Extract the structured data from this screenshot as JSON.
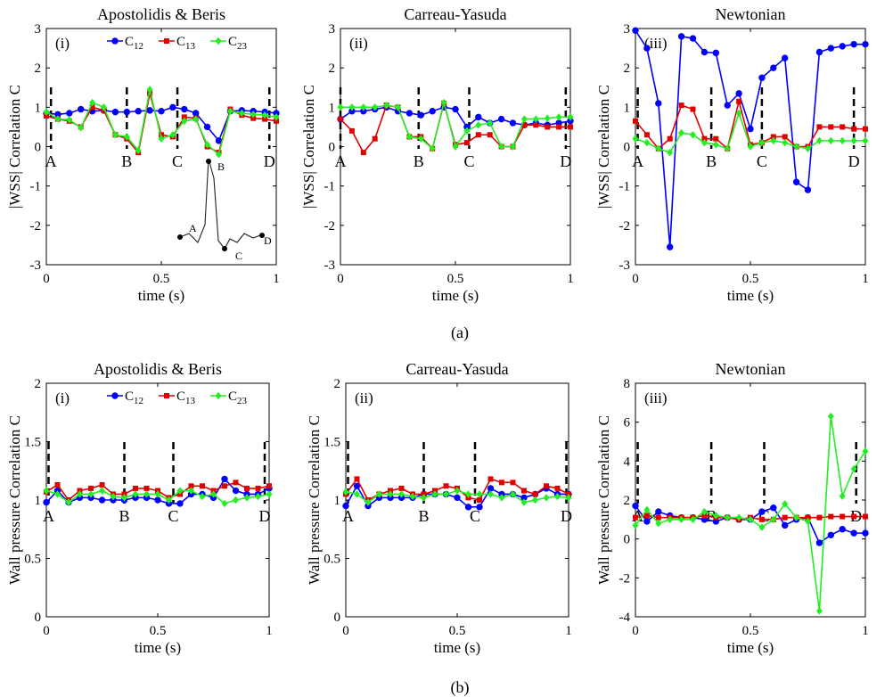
{
  "figure": {
    "row_a_caption": "(a)",
    "row_b_caption": "(b)"
  },
  "legend_entries": [
    {
      "name": "C",
      "sub": "12",
      "color": "#0000ff",
      "marker": "circle"
    },
    {
      "name": "C",
      "sub": "13",
      "color": "#e00000",
      "marker": "square"
    },
    {
      "name": "C",
      "sub": "23",
      "color": "#22ee22",
      "marker": "diamond"
    }
  ],
  "inset": {
    "labels": [
      "A",
      "B",
      "C",
      "D"
    ],
    "description_points": [
      [
        0,
        -2.3
      ],
      [
        0.12,
        -2.35
      ],
      [
        0.18,
        -0.4
      ],
      [
        0.29,
        -2.62
      ],
      [
        0.42,
        -2.28
      ]
    ]
  },
  "chart_data": [
    {
      "type": "line",
      "panel_label": "(i)",
      "title": "Apostolidis & Beris",
      "xlabel": "time (s)",
      "ylabel": "|WSS| Correlation C",
      "xlim": [
        0,
        1
      ],
      "ylim": [
        -3,
        3
      ],
      "xticks": [
        0,
        0.5,
        1
      ],
      "xtick_labels": [
        "0",
        "0.5",
        "1"
      ],
      "yticks": [
        -3,
        -2,
        -1,
        0,
        1,
        2,
        3
      ],
      "ytick_labels": [
        "-3",
        "-2",
        "-1",
        "0",
        "1",
        "2",
        "3"
      ],
      "legend": true,
      "markers": [
        {
          "label": "A",
          "x": 0.02
        },
        {
          "label": "B",
          "x": 0.35
        },
        {
          "label": "C",
          "x": 0.57
        },
        {
          "label": "D",
          "x": 0.97
        }
      ],
      "x": [
        0,
        0.05,
        0.1,
        0.15,
        0.2,
        0.25,
        0.3,
        0.35,
        0.4,
        0.45,
        0.5,
        0.55,
        0.6,
        0.65,
        0.7,
        0.75,
        0.8,
        0.85,
        0.9,
        0.95,
        1.0
      ],
      "series": [
        {
          "name": "C12",
          "values": [
            0.85,
            0.82,
            0.85,
            0.95,
            0.9,
            0.92,
            0.88,
            0.88,
            0.9,
            0.92,
            0.9,
            1.0,
            0.95,
            0.85,
            0.5,
            0.15,
            0.9,
            0.92,
            0.9,
            0.88,
            0.85
          ]
        },
        {
          "name": "C13",
          "values": [
            0.78,
            0.7,
            0.65,
            0.5,
            1.0,
            0.92,
            0.3,
            0.2,
            -0.15,
            1.35,
            0.3,
            0.25,
            0.75,
            0.72,
            0.0,
            -0.15,
            0.95,
            0.8,
            0.72,
            0.7,
            0.65
          ]
        },
        {
          "name": "C23",
          "values": [
            0.88,
            0.7,
            0.68,
            0.48,
            1.12,
            1.0,
            0.3,
            0.25,
            -0.1,
            1.45,
            0.2,
            0.3,
            0.65,
            0.7,
            0.05,
            -0.2,
            0.9,
            0.85,
            0.82,
            0.8,
            0.75
          ]
        }
      ],
      "has_inset": true
    },
    {
      "type": "line",
      "panel_label": "(ii)",
      "title": "Carreau-Yasuda",
      "xlabel": "time (s)",
      "ylabel": "|WSS| Correlation C",
      "xlim": [
        0,
        1
      ],
      "ylim": [
        -3,
        3
      ],
      "xticks": [
        0,
        0.5,
        1
      ],
      "xtick_labels": [
        "0",
        "0.5",
        "1"
      ],
      "yticks": [
        -3,
        -2,
        -1,
        0,
        1,
        2,
        3
      ],
      "ytick_labels": [
        "-3",
        "-2",
        "-1",
        "0",
        "1",
        "2",
        "3"
      ],
      "legend": false,
      "markers": [
        {
          "label": "A",
          "x": 0.0
        },
        {
          "label": "B",
          "x": 0.34
        },
        {
          "label": "C",
          "x": 0.56
        },
        {
          "label": "D",
          "x": 0.98
        }
      ],
      "x": [
        0,
        0.05,
        0.1,
        0.15,
        0.2,
        0.25,
        0.3,
        0.35,
        0.4,
        0.45,
        0.5,
        0.55,
        0.6,
        0.65,
        0.7,
        0.75,
        0.8,
        0.85,
        0.9,
        0.95,
        1.0
      ],
      "series": [
        {
          "name": "C12",
          "values": [
            0.7,
            0.9,
            0.9,
            0.95,
            1.0,
            0.9,
            0.85,
            0.8,
            0.9,
            1.0,
            0.95,
            0.5,
            0.75,
            0.6,
            0.7,
            0.6,
            0.55,
            0.6,
            0.55,
            0.6,
            0.65
          ]
        },
        {
          "name": "C13",
          "values": [
            0.7,
            0.4,
            -0.15,
            0.2,
            1.05,
            1.0,
            0.25,
            0.25,
            -0.05,
            1.1,
            0.05,
            0.1,
            0.3,
            0.3,
            0.0,
            0.0,
            0.55,
            0.55,
            0.5,
            0.5,
            0.5
          ]
        },
        {
          "name": "C23",
          "values": [
            1.0,
            1.0,
            1.0,
            1.0,
            1.05,
            1.0,
            0.25,
            0.2,
            -0.05,
            1.12,
            0.0,
            0.4,
            0.55,
            0.6,
            0.0,
            0.0,
            0.7,
            0.7,
            0.72,
            0.75,
            0.75
          ]
        }
      ],
      "has_inset": false
    },
    {
      "type": "line",
      "panel_label": "(iii)",
      "title": "Newtonian",
      "xlabel": "time (s)",
      "ylabel": "|WSS| Correlation C",
      "xlim": [
        0,
        1
      ],
      "ylim": [
        -3,
        3
      ],
      "xticks": [
        0,
        0.5,
        1
      ],
      "xtick_labels": [
        "0",
        "0.5",
        "1"
      ],
      "yticks": [
        -3,
        -2,
        -1,
        0,
        1,
        2,
        3
      ],
      "ytick_labels": [
        "-3",
        "-2",
        "-1",
        "0",
        "1",
        "2",
        "3"
      ],
      "legend": false,
      "markers": [
        {
          "label": "A",
          "x": 0.01
        },
        {
          "label": "B",
          "x": 0.33
        },
        {
          "label": "C",
          "x": 0.55
        },
        {
          "label": "D",
          "x": 0.95
        }
      ],
      "x": [
        0,
        0.05,
        0.1,
        0.15,
        0.2,
        0.25,
        0.3,
        0.35,
        0.4,
        0.45,
        0.5,
        0.55,
        0.6,
        0.65,
        0.7,
        0.75,
        0.8,
        0.85,
        0.9,
        0.95,
        1.0
      ],
      "series": [
        {
          "name": "C12",
          "values": [
            2.95,
            2.5,
            1.1,
            -2.55,
            2.8,
            2.75,
            2.4,
            2.38,
            1.05,
            1.35,
            0.45,
            1.75,
            2.0,
            2.25,
            -0.9,
            -1.1,
            2.4,
            2.5,
            2.55,
            2.6,
            2.6
          ]
        },
        {
          "name": "C13",
          "values": [
            0.65,
            0.3,
            -0.05,
            0.2,
            1.05,
            0.95,
            0.2,
            0.2,
            -0.05,
            1.15,
            0.05,
            0.1,
            0.25,
            0.25,
            0.0,
            0.0,
            0.5,
            0.5,
            0.5,
            0.45,
            0.45
          ]
        },
        {
          "name": "C23",
          "values": [
            0.2,
            0.1,
            -0.05,
            -0.15,
            0.35,
            0.3,
            0.1,
            0.05,
            -0.05,
            0.85,
            0.0,
            0.1,
            0.15,
            0.1,
            0.0,
            -0.05,
            0.15,
            0.15,
            0.15,
            0.15,
            0.15
          ]
        }
      ],
      "has_inset": false
    },
    {
      "type": "line",
      "panel_label": "(i)",
      "title": "Apostolidis & Beris",
      "xlabel": "time (s)",
      "ylabel": "Wall pressure Correlation C",
      "xlim": [
        0,
        1
      ],
      "ylim": [
        0,
        2
      ],
      "xticks": [
        0,
        0.5,
        1
      ],
      "xtick_labels": [
        "0",
        "0.5",
        "1"
      ],
      "yticks": [
        0,
        0.5,
        1,
        1.5,
        2
      ],
      "ytick_labels": [
        "0",
        "0.5",
        "1",
        "1.5",
        "2"
      ],
      "legend": true,
      "markers": [
        {
          "label": "A",
          "x": 0.01
        },
        {
          "label": "B",
          "x": 0.35
        },
        {
          "label": "C",
          "x": 0.57
        },
        {
          "label": "D",
          "x": 0.98
        }
      ],
      "x": [
        0,
        0.05,
        0.1,
        0.15,
        0.2,
        0.25,
        0.3,
        0.35,
        0.4,
        0.45,
        0.5,
        0.55,
        0.6,
        0.65,
        0.7,
        0.75,
        0.8,
        0.85,
        0.9,
        0.95,
        1.0
      ],
      "series": [
        {
          "name": "C12",
          "values": [
            0.98,
            1.08,
            0.98,
            1.02,
            1.02,
            1.0,
            1.0,
            1.0,
            1.02,
            1.02,
            1.0,
            0.97,
            0.97,
            1.05,
            1.05,
            1.02,
            1.18,
            1.08,
            1.05,
            1.05,
            1.1
          ]
        },
        {
          "name": "C13",
          "values": [
            1.07,
            1.13,
            1.0,
            1.08,
            1.1,
            1.13,
            1.05,
            1.05,
            1.1,
            1.1,
            1.08,
            1.02,
            1.05,
            1.12,
            1.12,
            1.08,
            1.12,
            1.15,
            1.1,
            1.1,
            1.12
          ]
        },
        {
          "name": "C23",
          "values": [
            1.08,
            1.05,
            0.98,
            1.05,
            1.05,
            1.08,
            1.03,
            1.02,
            1.05,
            1.05,
            1.05,
            1.0,
            1.08,
            1.08,
            1.03,
            1.05,
            0.97,
            1.0,
            1.02,
            1.03,
            1.05
          ]
        }
      ],
      "has_inset": false
    },
    {
      "type": "line",
      "panel_label": "(ii)",
      "title": "Carreau-Yasuda",
      "xlabel": "time (s)",
      "ylabel": "Wall pressure Correlation C",
      "xlim": [
        0,
        1
      ],
      "ylim": [
        0,
        2
      ],
      "xticks": [
        0,
        0.5,
        1
      ],
      "xtick_labels": [
        "0",
        "0.5",
        "1"
      ],
      "yticks": [
        0,
        0.5,
        1,
        1.5,
        2
      ],
      "ytick_labels": [
        "0",
        "0.5",
        "1",
        "1.5",
        "2"
      ],
      "legend": false,
      "markers": [
        {
          "label": "A",
          "x": 0.01
        },
        {
          "label": "B",
          "x": 0.35
        },
        {
          "label": "C",
          "x": 0.58
        },
        {
          "label": "D",
          "x": 0.99
        }
      ],
      "x": [
        0,
        0.05,
        0.1,
        0.15,
        0.2,
        0.25,
        0.3,
        0.35,
        0.4,
        0.45,
        0.5,
        0.55,
        0.6,
        0.65,
        0.7,
        0.75,
        0.8,
        0.85,
        0.9,
        0.95,
        1.0
      ],
      "series": [
        {
          "name": "C12",
          "values": [
            0.95,
            1.12,
            0.95,
            1.02,
            1.02,
            1.02,
            1.02,
            1.05,
            1.05,
            1.05,
            1.02,
            0.94,
            0.94,
            1.1,
            1.05,
            1.05,
            1.02,
            1.05,
            1.1,
            1.05,
            1.05
          ]
        },
        {
          "name": "C13",
          "values": [
            1.05,
            1.18,
            1.0,
            1.05,
            1.08,
            1.1,
            1.05,
            1.05,
            1.08,
            1.12,
            1.1,
            1.02,
            1.0,
            1.18,
            1.15,
            1.15,
            1.08,
            1.05,
            1.12,
            1.1,
            1.05
          ]
        },
        {
          "name": "C23",
          "values": [
            1.07,
            1.05,
            0.98,
            1.05,
            1.05,
            1.05,
            1.03,
            1.02,
            1.05,
            1.05,
            1.08,
            1.05,
            1.05,
            1.05,
            1.02,
            1.05,
            0.98,
            1.0,
            1.02,
            1.03,
            1.02
          ]
        }
      ],
      "has_inset": false
    },
    {
      "type": "line",
      "panel_label": "(iii)",
      "title": "Newtonian",
      "xlabel": "time (s)",
      "ylabel": "Wall pressure Correlation C",
      "xlim": [
        0,
        1
      ],
      "ylim": [
        -4,
        8
      ],
      "xticks": [
        0,
        0.5,
        1
      ],
      "xtick_labels": [
        "0",
        "0.5",
        "1"
      ],
      "yticks": [
        -4,
        -2,
        0,
        2,
        4,
        6,
        8
      ],
      "ytick_labels": [
        "-4",
        "-2",
        "0",
        "2",
        "4",
        "6",
        "8"
      ],
      "legend": false,
      "markers": [
        {
          "label": "A",
          "x": 0.01
        },
        {
          "label": "B",
          "x": 0.33
        },
        {
          "label": "C",
          "x": 0.56
        },
        {
          "label": "D",
          "x": 0.96
        }
      ],
      "x": [
        0,
        0.05,
        0.1,
        0.15,
        0.2,
        0.25,
        0.3,
        0.35,
        0.4,
        0.45,
        0.5,
        0.55,
        0.6,
        0.65,
        0.7,
        0.75,
        0.8,
        0.85,
        0.9,
        0.95,
        1.0
      ],
      "series": [
        {
          "name": "C12",
          "values": [
            1.7,
            0.9,
            1.4,
            1.2,
            1.1,
            1.1,
            1.0,
            0.9,
            1.1,
            1.0,
            1.0,
            1.4,
            1.6,
            0.7,
            1.0,
            1.1,
            -0.2,
            0.2,
            0.5,
            0.3,
            0.3
          ]
        },
        {
          "name": "C13",
          "values": [
            1.1,
            1.2,
            1.1,
            1.1,
            1.1,
            1.1,
            1.2,
            1.1,
            1.1,
            1.0,
            1.1,
            1.0,
            1.0,
            1.1,
            1.1,
            1.1,
            1.1,
            1.15,
            1.15,
            1.15,
            1.15
          ]
        },
        {
          "name": "C23",
          "values": [
            0.7,
            1.5,
            0.8,
            1.0,
            1.0,
            1.0,
            1.4,
            1.2,
            1.1,
            1.1,
            1.0,
            0.6,
            1.0,
            1.8,
            1.1,
            0.9,
            -3.7,
            6.3,
            2.2,
            3.6,
            4.5
          ]
        }
      ],
      "has_inset": false
    }
  ]
}
